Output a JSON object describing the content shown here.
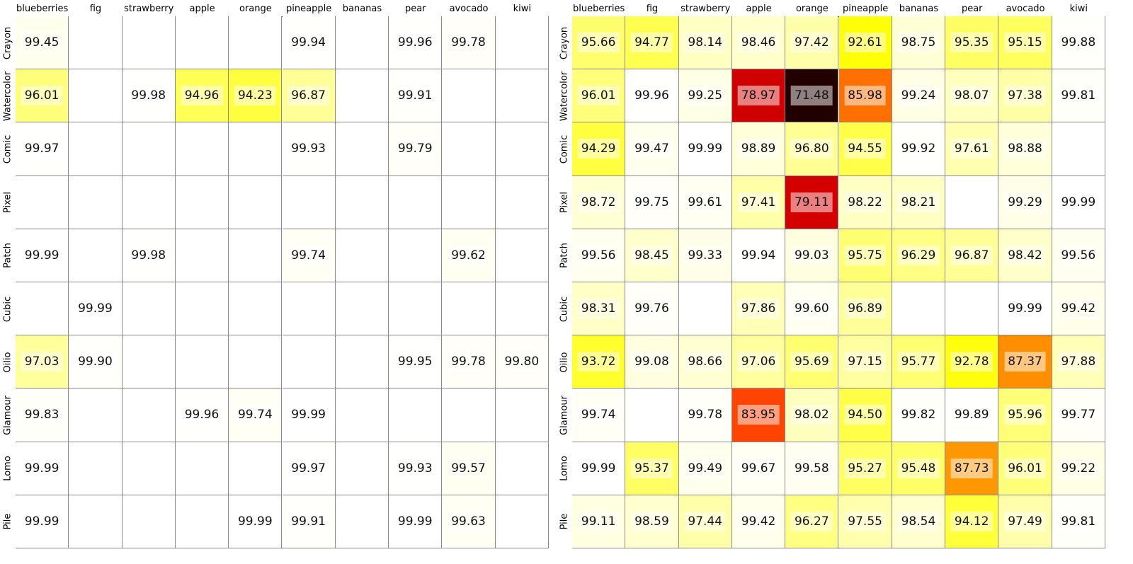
{
  "chart_data": [
    {
      "type": "heatmap",
      "columns": [
        "blueberries",
        "fig",
        "strawberry",
        "apple",
        "orange",
        "pineapple",
        "bananas",
        "pear",
        "avocado",
        "kiwi"
      ],
      "rows": [
        "Crayon",
        "Watercolor",
        "Comic",
        "Pixel",
        "Patch",
        "Cubic",
        "Oilio",
        "Glamour",
        "Lomo",
        "Pile"
      ],
      "values": [
        [
          "99.45",
          "",
          "",
          "",
          "",
          "99.94",
          "",
          "99.96",
          "99.78",
          ""
        ],
        [
          "96.01",
          "",
          "99.98",
          "94.96",
          "94.23",
          "96.87",
          "",
          "99.91",
          "",
          ""
        ],
        [
          "99.97",
          "",
          "",
          "",
          "",
          "99.93",
          "",
          "99.79",
          "",
          ""
        ],
        [
          "",
          "",
          "",
          "",
          "",
          "",
          "",
          "",
          "",
          ""
        ],
        [
          "99.99",
          "",
          "99.98",
          "",
          "",
          "99.74",
          "",
          "",
          "99.62",
          ""
        ],
        [
          "",
          "99.99",
          "",
          "",
          "",
          "",
          "",
          "",
          "",
          ""
        ],
        [
          "97.03",
          "99.90",
          "",
          "",
          "",
          "",
          "",
          "99.95",
          "99.78",
          "99.80"
        ],
        [
          "99.83",
          "",
          "",
          "99.96",
          "99.74",
          "99.99",
          "",
          "",
          "",
          ""
        ],
        [
          "99.99",
          "",
          "",
          "",
          "",
          "99.97",
          "",
          "99.93",
          "99.57",
          ""
        ],
        [
          "99.99",
          "",
          "",
          "",
          "99.99",
          "99.91",
          "",
          "99.99",
          "99.63",
          ""
        ]
      ],
      "colormap": "hot",
      "value_range": [
        70,
        100
      ]
    },
    {
      "type": "heatmap",
      "columns": [
        "blueberries",
        "fig",
        "strawberry",
        "apple",
        "orange",
        "pineapple",
        "bananas",
        "pear",
        "avocado",
        "kiwi"
      ],
      "rows": [
        "Crayon",
        "Watercolor",
        "Comic",
        "Pixel",
        "Patch",
        "Cubic",
        "Oilio",
        "Glamour",
        "Lomo",
        "Pile"
      ],
      "values": [
        [
          "95.66",
          "94.77",
          "98.14",
          "98.46",
          "97.42",
          "92.61",
          "98.75",
          "95.35",
          "95.15",
          "99.88"
        ],
        [
          "96.01",
          "99.96",
          "99.25",
          "78.97",
          "71.48",
          "85.98",
          "99.24",
          "98.07",
          "97.38",
          "99.81"
        ],
        [
          "94.29",
          "99.47",
          "99.99",
          "98.89",
          "96.80",
          "94.55",
          "99.92",
          "97.61",
          "98.88",
          ""
        ],
        [
          "98.72",
          "99.75",
          "99.61",
          "97.41",
          "79.11",
          "98.22",
          "98.21",
          "",
          "99.29",
          "99.99"
        ],
        [
          "99.56",
          "98.45",
          "99.33",
          "99.94",
          "99.03",
          "95.75",
          "96.29",
          "96.87",
          "98.42",
          "99.56"
        ],
        [
          "98.31",
          "99.76",
          "",
          "97.86",
          "99.60",
          "96.89",
          "",
          "",
          "99.99",
          "99.42"
        ],
        [
          "93.72",
          "99.08",
          "98.66",
          "97.06",
          "95.69",
          "97.15",
          "95.77",
          "92.78",
          "87.37",
          "97.88"
        ],
        [
          "99.74",
          "",
          "99.78",
          "83.95",
          "98.02",
          "94.50",
          "99.82",
          "99.89",
          "95.96",
          "99.77"
        ],
        [
          "99.99",
          "95.37",
          "99.49",
          "99.67",
          "99.58",
          "95.27",
          "95.48",
          "87.73",
          "96.01",
          "99.22"
        ],
        [
          "99.11",
          "98.59",
          "97.44",
          "99.42",
          "96.27",
          "97.55",
          "98.54",
          "94.12",
          "97.49",
          "99.81"
        ]
      ],
      "colormap": "hot",
      "value_range": [
        70,
        100
      ]
    }
  ]
}
